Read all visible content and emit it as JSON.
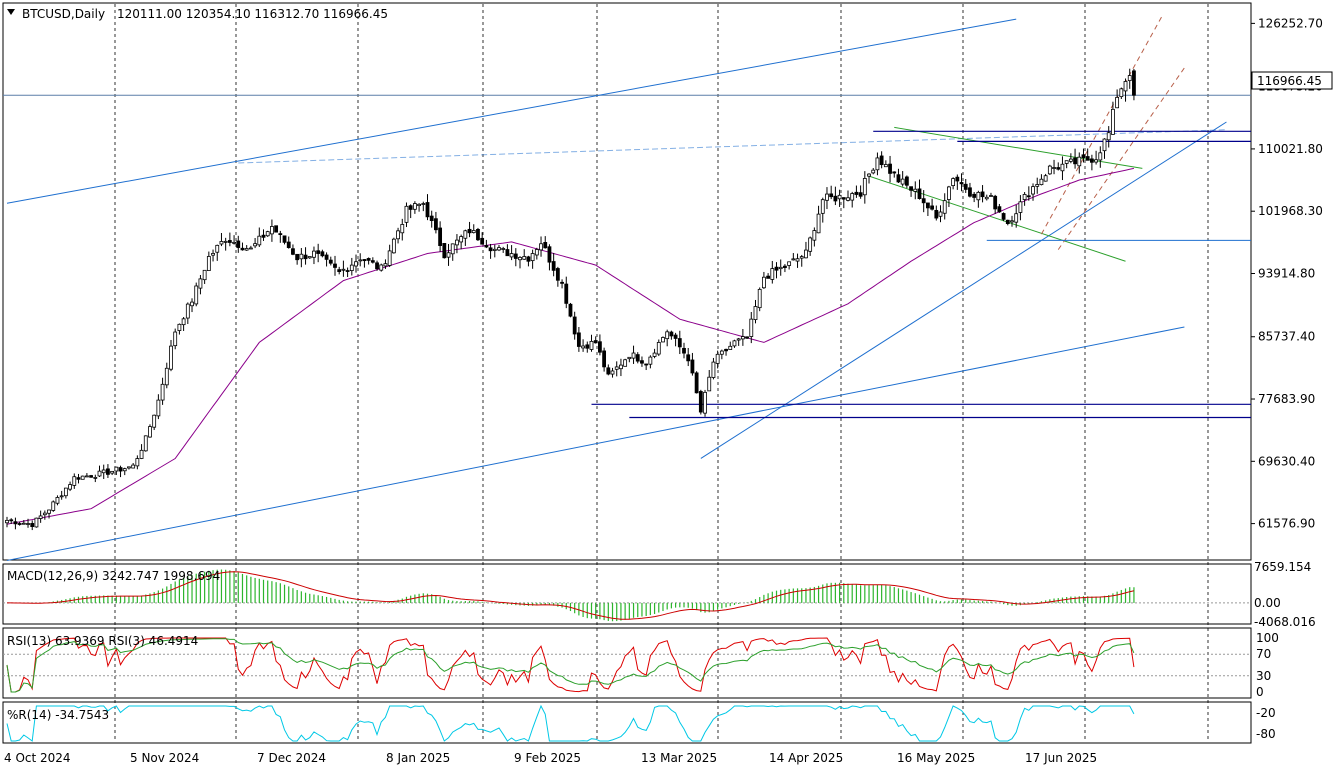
{
  "header": {
    "symbol": "BTCUSD,Daily",
    "ohlc": "120111.00 120354.10 116312.70 116966.45",
    "arrow_icon": "triangle-down-icon"
  },
  "price_axis": {
    "ticks": [
      "126252.70",
      "118075.20",
      "110021.80",
      "101968.30",
      "93914.80",
      "85737.40",
      "77683.90",
      "69630.40",
      "61576.90"
    ],
    "current_price": "116966.45"
  },
  "macd": {
    "label": "MACD(12,26,9) 3242.747 1998.694",
    "ticks": [
      "7659.154",
      "0.00",
      "-4068.016"
    ]
  },
  "rsi": {
    "label": "RSI(13) 63.9369  RSI(3) 46.4914",
    "ticks": [
      "100",
      "70",
      "30",
      "0"
    ]
  },
  "willr": {
    "label": "%R(14) -34.7543",
    "ticks": [
      "-20",
      "-80"
    ]
  },
  "date_axis": [
    "4 Oct 2024",
    "5 Nov 2024",
    "7 Dec 2024",
    "8 Jan 2025",
    "9 Feb 2025",
    "13 Mar 2025",
    "14 Apr 2025",
    "16 May 2025",
    "17 Jun 2025"
  ],
  "colors": {
    "bull": "#000000",
    "ma": "#8b008b",
    "trend": "#1e6fcf",
    "level": "#00008b",
    "channel_green": "#2ca02c",
    "channel_dashed": "#b8604a",
    "macd_hist": "#2db52d",
    "macd_signal": "#cc0000",
    "rsi_fast": "#dd0000",
    "rsi_slow": "#2ca02c",
    "willr": "#00c8e6",
    "current_line": "#5b7fa8"
  },
  "chart_data": {
    "type": "candlestick",
    "symbol": "BTCUSD",
    "timeframe": "Daily",
    "ylim": [
      57000,
      128500
    ],
    "x_labels": [
      "4 Oct 2024",
      "5 Nov 2024",
      "7 Dec 2024",
      "8 Jan 2025",
      "9 Feb 2025",
      "13 Mar 2025",
      "14 Apr 2025",
      "16 May 2025",
      "17 Jun 2025"
    ],
    "last_bar": {
      "open": 120111.0,
      "high": 120354.1,
      "low": 116312.7,
      "close": 116966.45
    },
    "close_anchors": [
      [
        0,
        62000
      ],
      [
        6,
        61500
      ],
      [
        10,
        63500
      ],
      [
        16,
        67500
      ],
      [
        22,
        68000
      ],
      [
        30,
        69000
      ],
      [
        33,
        72500
      ],
      [
        36,
        77500
      ],
      [
        40,
        86500
      ],
      [
        44,
        90500
      ],
      [
        48,
        96000
      ],
      [
        52,
        98500
      ],
      [
        58,
        97000
      ],
      [
        63,
        100000
      ],
      [
        69,
        96000
      ],
      [
        73,
        96500
      ],
      [
        79,
        94000
      ],
      [
        84,
        96000
      ],
      [
        89,
        94500
      ],
      [
        95,
        102000
      ],
      [
        99,
        103000
      ],
      [
        104,
        96500
      ],
      [
        110,
        99500
      ],
      [
        116,
        97000
      ],
      [
        124,
        96000
      ],
      [
        127,
        98000
      ],
      [
        132,
        92500
      ],
      [
        136,
        84500
      ],
      [
        140,
        85000
      ],
      [
        143,
        80500
      ],
      [
        148,
        83500
      ],
      [
        152,
        82500
      ],
      [
        157,
        86500
      ],
      [
        162,
        83000
      ],
      [
        165,
        76000
      ],
      [
        168,
        82500
      ],
      [
        173,
        85000
      ],
      [
        176,
        85500
      ],
      [
        180,
        93500
      ],
      [
        185,
        94800
      ],
      [
        190,
        96500
      ],
      [
        194,
        103500
      ],
      [
        198,
        103800
      ],
      [
        203,
        104500
      ],
      [
        207,
        109000
      ],
      [
        212,
        106000
      ],
      [
        217,
        104000
      ],
      [
        221,
        101000
      ],
      [
        225,
        106500
      ],
      [
        229,
        104500
      ],
      [
        234,
        103500
      ],
      [
        238,
        100500
      ],
      [
        243,
        104500
      ],
      [
        248,
        107500
      ],
      [
        252,
        108000
      ],
      [
        256,
        108500
      ],
      [
        259,
        109000
      ],
      [
        262,
        112000
      ],
      [
        264,
        117000
      ],
      [
        266,
        119000
      ],
      [
        267,
        120000
      ],
      [
        268,
        116966.45
      ]
    ],
    "ma_anchors": [
      [
        0,
        61500
      ],
      [
        20,
        63500
      ],
      [
        40,
        70000
      ],
      [
        60,
        85000
      ],
      [
        80,
        93000
      ],
      [
        100,
        96500
      ],
      [
        120,
        98000
      ],
      [
        140,
        95000
      ],
      [
        160,
        88000
      ],
      [
        180,
        85000
      ],
      [
        200,
        90000
      ],
      [
        215,
        95500
      ],
      [
        230,
        100500
      ],
      [
        245,
        104000
      ],
      [
        255,
        106000
      ],
      [
        268,
        107500
      ]
    ],
    "levels": [
      77000,
      75300,
      112300,
      111000,
      98200
    ],
    "trendlines": [
      {
        "from": [
          0,
          103000
        ],
        "to": [
          240,
          126800
        ]
      },
      {
        "from": [
          0,
          56800
        ],
        "to": [
          280,
          87000
        ]
      },
      {
        "from": [
          165,
          70000
        ],
        "to": [
          290,
          113500
        ]
      },
      {
        "from": [
          55,
          108200
        ],
        "to": [
          290,
          112500
        ]
      }
    ],
    "macd_ylim": [
      -4068.016,
      7659.154
    ],
    "rsi_ylim": [
      0,
      100
    ],
    "willr_ylim": [
      -100,
      0
    ]
  }
}
